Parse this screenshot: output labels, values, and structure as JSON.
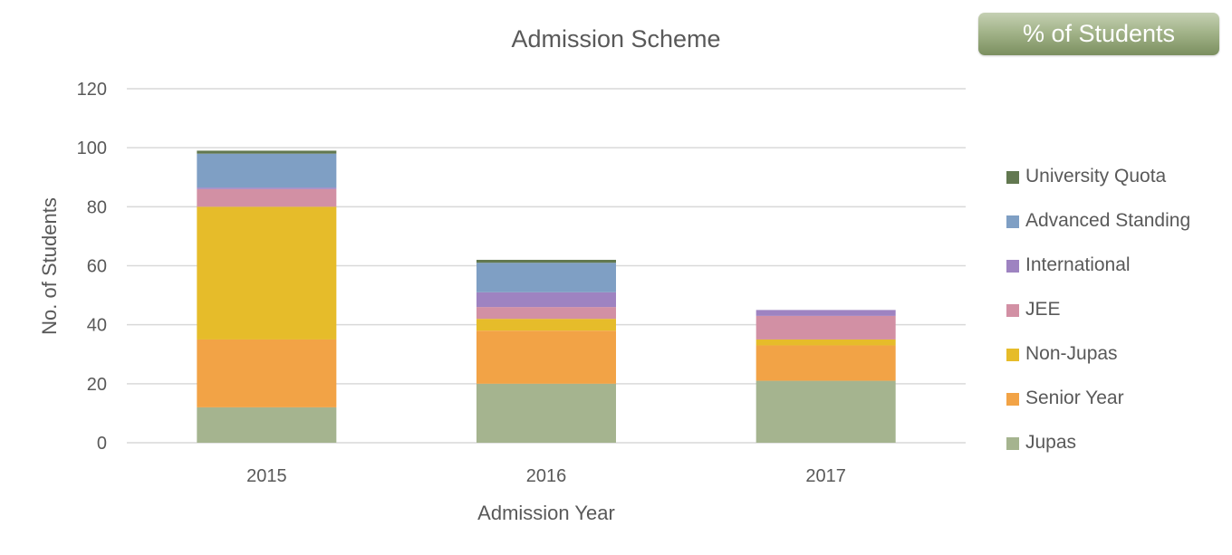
{
  "button": {
    "label": "% of Students"
  },
  "colors": {
    "University Quota": "#627850",
    "Advanced Standing": "#7f9fc4",
    "International": "#9e83c1",
    "JEE": "#d290a4",
    "Non-Jupas": "#e6bc2a",
    "Senior Year": "#f2a346",
    "Jupas": "#a5b48f",
    "grid": "#d9d9d9",
    "text": "#595959"
  },
  "chart_data": {
    "type": "bar",
    "stacked": true,
    "title": "Admission Scheme",
    "xlabel": "Admission Year",
    "ylabel": "No. of Students",
    "categories": [
      "2015",
      "2016",
      "2017"
    ],
    "ylim": [
      0,
      120
    ],
    "yticks": [
      "0",
      "20",
      "40",
      "60",
      "80",
      "100",
      "120"
    ],
    "grid": true,
    "legend_position": "right",
    "series": [
      {
        "name": "Jupas",
        "values": [
          12,
          20,
          21
        ]
      },
      {
        "name": "Senior Year",
        "values": [
          23,
          18,
          12
        ]
      },
      {
        "name": "Non-Jupas",
        "values": [
          45,
          4,
          2
        ]
      },
      {
        "name": "JEE",
        "values": [
          6,
          4,
          8
        ]
      },
      {
        "name": "International",
        "values": [
          0.5,
          5,
          2
        ]
      },
      {
        "name": "Advanced Standing",
        "values": [
          11.5,
          10,
          0
        ]
      },
      {
        "name": "University Quota",
        "values": [
          1,
          1,
          0
        ]
      }
    ],
    "legend_order": [
      "University Quota",
      "Advanced Standing",
      "International",
      "JEE",
      "Non-Jupas",
      "Senior Year",
      "Jupas"
    ]
  }
}
